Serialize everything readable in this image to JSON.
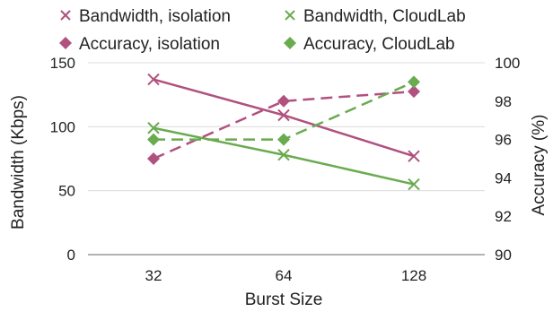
{
  "chart_data": {
    "type": "line",
    "title": "",
    "xlabel": "Burst Size",
    "ylabel_left": "Bandwidth (Kbps)",
    "ylabel_right": "Accuracy (%)",
    "categories": [
      "32",
      "64",
      "128"
    ],
    "ylim_left": [
      0,
      150
    ],
    "yticks_left": [
      0,
      50,
      100,
      150
    ],
    "ylim_right": [
      90,
      100
    ],
    "yticks_right": [
      90,
      92,
      94,
      96,
      98,
      100
    ],
    "grid": "horizontal",
    "legend_position": "top",
    "series": [
      {
        "name": "Bandwidth, isolation",
        "axis": "left",
        "marker": "x",
        "dash": "solid",
        "color": "#b0517f",
        "values": [
          137,
          109,
          77
        ]
      },
      {
        "name": "Bandwidth, CloudLab",
        "axis": "left",
        "marker": "x",
        "dash": "solid",
        "color": "#6aab4f",
        "values": [
          99,
          78,
          55
        ]
      },
      {
        "name": "Accuracy, isolation",
        "axis": "right",
        "marker": "diamond",
        "dash": "dashed",
        "color": "#b0517f",
        "values": [
          95.0,
          98.0,
          98.5
        ]
      },
      {
        "name": "Accuracy, CloudLab",
        "axis": "right",
        "marker": "diamond",
        "dash": "dashed",
        "color": "#6aab4f",
        "values": [
          96.0,
          96.0,
          99.0
        ]
      }
    ]
  }
}
